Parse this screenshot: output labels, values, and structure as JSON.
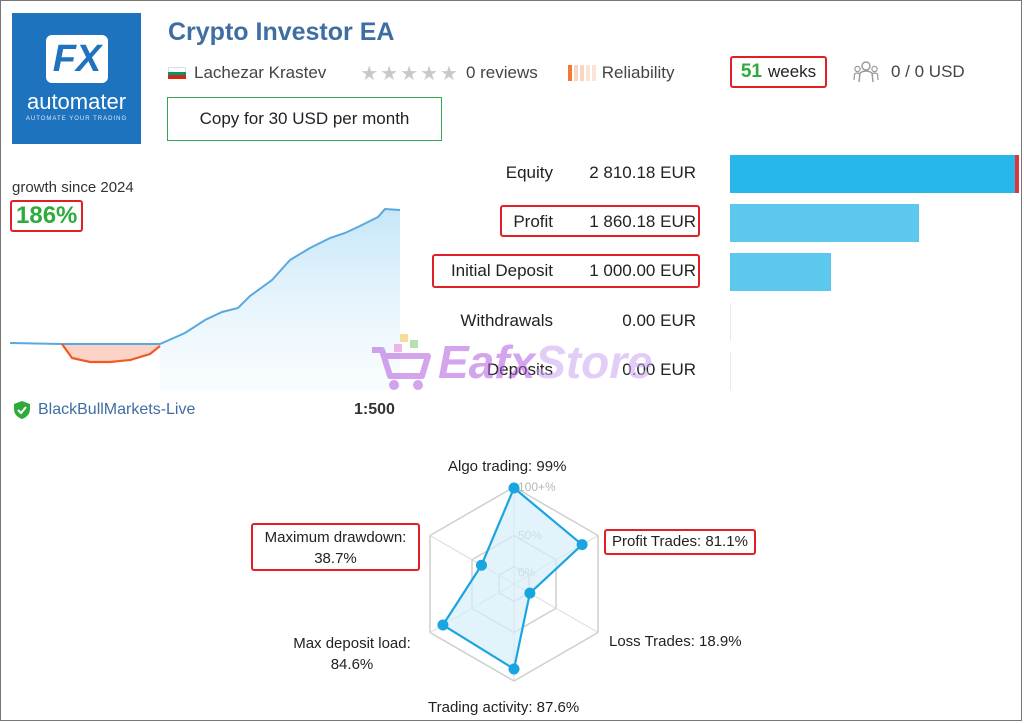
{
  "header": {
    "logo": {
      "mark": "FX",
      "word": "automater",
      "tagline": "AUTOMATE YOUR TRADING"
    },
    "title": "Crypto Investor EA",
    "author": "Lachezar Krastev",
    "reviews": "0 reviews",
    "reliability_label": "Reliability",
    "weeks_num": "51",
    "weeks_label": "weeks",
    "subscribers": "0 / 0 USD",
    "copy_button": "Copy for 30 USD per month"
  },
  "growth": {
    "label": "growth since 2024",
    "value": "186%",
    "broker": "BlackBullMarkets-Live",
    "leverage": "1:500"
  },
  "stats": [
    {
      "label": "Equity",
      "value": "2 810.18 EUR",
      "bar_fraction": 1.0,
      "color": "#29b6e8"
    },
    {
      "label": "Profit",
      "value": "1 860.18 EUR",
      "bar_fraction": 0.662,
      "color": "#5cc8ee"
    },
    {
      "label": "Initial Deposit",
      "value": "1 000.00 EUR",
      "bar_fraction": 0.356,
      "color": "#5cc8ee"
    },
    {
      "label": "Withdrawals",
      "value": "0.00 EUR",
      "bar_fraction": 0.0,
      "color": "#5cc8ee"
    },
    {
      "label": "Deposits",
      "value": "0.00 EUR",
      "bar_fraction": 0.0,
      "color": "#5cc8ee"
    }
  ],
  "watermark": {
    "text_a": "Eafx",
    "text_b": "Store"
  },
  "radar": {
    "ticks": [
      "100+%",
      "50%",
      "0%"
    ],
    "axes": [
      {
        "label": "Algo trading: 99%",
        "value": 99
      },
      {
        "label": "Profit Trades: 81.1%",
        "value": 81.1
      },
      {
        "label": "Loss Trades: 18.9%",
        "value": 18.9
      },
      {
        "label": "Trading activity: 87.6%",
        "value": 87.6
      },
      {
        "label_line1": "Max deposit load:",
        "label_line2": "84.6%",
        "value": 84.6
      },
      {
        "label_line1": "Maximum drawdown:",
        "label_line2": "38.7%",
        "value": 38.7
      }
    ]
  },
  "colors": {
    "accent": "#3f6ea3",
    "positive": "#2eab3c",
    "highlight": "#e01f26",
    "line": "#1ba5e0"
  }
}
